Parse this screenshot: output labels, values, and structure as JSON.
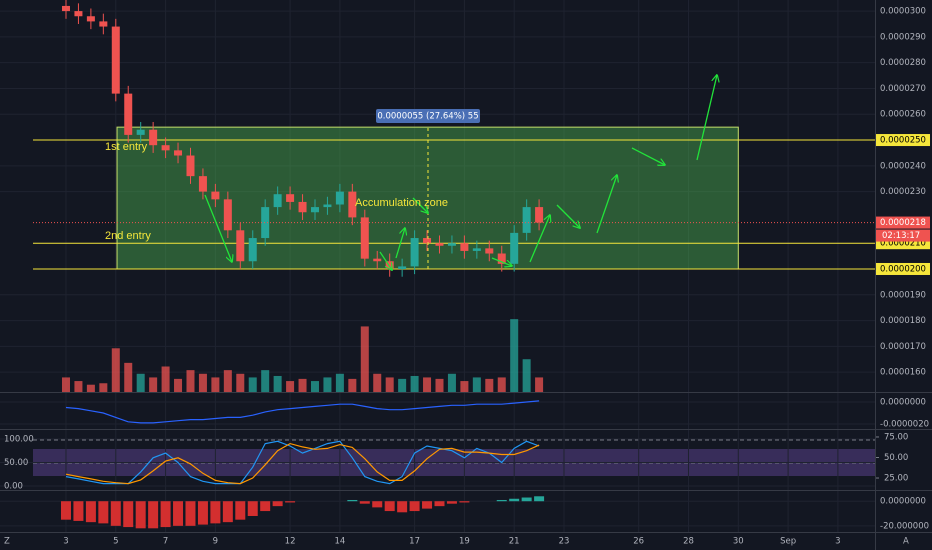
{
  "chart_data": [
    {
      "type": "candlestick",
      "x": [
        3,
        3.5,
        4,
        4.5,
        5,
        5.5,
        6,
        6.5,
        7,
        7.5,
        8,
        8.5,
        9,
        9.5,
        10,
        10.5,
        11,
        11.5,
        12,
        12.5,
        13,
        13.5,
        14,
        14.5,
        15,
        15.5,
        16,
        16.5,
        17,
        17.5,
        18,
        18.5,
        19,
        19.5,
        20,
        20.5,
        21,
        21.5,
        22
      ],
      "open": [
        3.02e-05,
        3e-05,
        2.98e-05,
        2.96e-05,
        2.94e-05,
        2.68e-05,
        2.52e-05,
        2.54e-05,
        2.48e-05,
        2.46e-05,
        2.44e-05,
        2.36e-05,
        2.3e-05,
        2.27e-05,
        2.15e-05,
        2.03e-05,
        2.12e-05,
        2.24e-05,
        2.29e-05,
        2.26e-05,
        2.22e-05,
        2.24e-05,
        2.25e-05,
        2.3e-05,
        2.2e-05,
        2.04e-05,
        2.03e-05,
        2e-05,
        2.01e-05,
        2.12e-05,
        2.1e-05,
        2.09e-05,
        2.1e-05,
        2.07e-05,
        2.08e-05,
        2.06e-05,
        2.02e-05,
        2.14e-05,
        2.24e-05
      ],
      "high": [
        3.05e-05,
        3.03e-05,
        3.01e-05,
        2.99e-05,
        2.97e-05,
        2.71e-05,
        2.57e-05,
        2.57e-05,
        2.51e-05,
        2.49e-05,
        2.47e-05,
        2.39e-05,
        2.33e-05,
        2.3e-05,
        2.18e-05,
        2.15e-05,
        2.27e-05,
        2.32e-05,
        2.32e-05,
        2.29e-05,
        2.27e-05,
        2.28e-05,
        2.33e-05,
        2.33e-05,
        2.23e-05,
        2.07e-05,
        2.06e-05,
        2.04e-05,
        2.15e-05,
        2.15e-05,
        2.13e-05,
        2.13e-05,
        2.13e-05,
        2.11e-05,
        2.11e-05,
        2.09e-05,
        2.17e-05,
        2.27e-05,
        2.27e-05
      ],
      "low": [
        2.97e-05,
        2.95e-05,
        2.93e-05,
        2.91e-05,
        2.65e-05,
        2.49e-05,
        2.49e-05,
        2.45e-05,
        2.43e-05,
        2.41e-05,
        2.33e-05,
        2.27e-05,
        2.24e-05,
        2.12e-05,
        2e-05,
        2e-05,
        2.09e-05,
        2.21e-05,
        2.23e-05,
        2.19e-05,
        2.19e-05,
        2.21e-05,
        2.22e-05,
        2.17e-05,
        2.01e-05,
        2e-05,
        1.97e-05,
        1.97e-05,
        1.98e-05,
        2.07e-05,
        2.06e-05,
        2.06e-05,
        2.04e-05,
        2.04e-05,
        2.03e-05,
        1.99e-05,
        1.99e-05,
        2.11e-05,
        2.15e-05
      ],
      "close": [
        3e-05,
        2.98e-05,
        2.96e-05,
        2.94e-05,
        2.68e-05,
        2.52e-05,
        2.54e-05,
        2.48e-05,
        2.46e-05,
        2.44e-05,
        2.36e-05,
        2.3e-05,
        2.27e-05,
        2.15e-05,
        2.03e-05,
        2.12e-05,
        2.24e-05,
        2.29e-05,
        2.26e-05,
        2.22e-05,
        2.24e-05,
        2.25e-05,
        2.3e-05,
        2.2e-05,
        2.04e-05,
        2.03e-05,
        2e-05,
        2.01e-05,
        2.12e-05,
        2.1e-05,
        2.09e-05,
        2.1e-05,
        2.07e-05,
        2.08e-05,
        2.06e-05,
        2.02e-05,
        2.14e-05,
        2.24e-05,
        2.18e-05
      ],
      "volume": [
        20,
        15,
        10,
        12,
        60,
        40,
        25,
        20,
        35,
        18,
        30,
        25,
        20,
        30,
        25,
        20,
        30,
        22,
        15,
        18,
        15,
        20,
        25,
        18,
        90,
        25,
        20,
        18,
        22,
        20,
        18,
        25,
        15,
        20,
        18,
        20,
        100,
        45,
        20
      ],
      "vlim": [
        0,
        140
      ],
      "up_color": "#26a69a",
      "down_color": "#ef5350",
      "xlim": [
        0.35,
        35.49
      ],
      "xticks": [
        3,
        5,
        7,
        9,
        12,
        14,
        17,
        19,
        21,
        23,
        26,
        28,
        30,
        {
          "value": 32,
          "label": "Sep"
        },
        {
          "value": 34,
          "label": "3"
        }
      ],
      "ylim": [
        1.523e-05,
        3.043e-05
      ],
      "yticks": [
        {
          "value": 1.6e-05,
          "label": "0.0000160"
        },
        {
          "value": 1.7e-05,
          "label": "0.0000170"
        },
        {
          "value": 1.8e-05,
          "label": "0.0000180"
        },
        {
          "value": 1.9e-05,
          "label": "0.0000190"
        },
        {
          "value": 2.3e-05,
          "label": "0.0000230"
        },
        {
          "value": 2.4e-05,
          "label": "0.0000240"
        },
        {
          "value": 2.6e-05,
          "label": "0.0000260"
        },
        {
          "value": 2.7e-05,
          "label": "0.0000270"
        },
        {
          "value": 2.8e-05,
          "label": "0.0000280"
        },
        {
          "value": 2.9e-05,
          "label": "0.0000290"
        },
        {
          "value": 3e-05,
          "label": "0.0000300"
        }
      ],
      "levels": [
        {
          "value": 2.5e-05,
          "label": "0.0000250"
        },
        {
          "value": 2.1e-05,
          "label": "0.0000210"
        },
        {
          "value": 2e-05,
          "label": "0.0000200"
        }
      ],
      "level_color": "#f5e63b",
      "last_price": {
        "value": 2.18e-05,
        "label": "0.0000218",
        "countdown": "02:13:17"
      },
      "zone": {
        "x": [
          5.05,
          30
        ],
        "y": [
          2e-05,
          2.55e-05
        ],
        "label": "0.0000055 (27.64%) 55"
      },
      "annotations": {
        "first": "1st entry",
        "second": "2nd entry",
        "zone": "Accumulation zone"
      }
    },
    {
      "type": "line",
      "series": [
        {
          "color": "#2962ff",
          "values": [
            -5e-07,
            -6e-07,
            -8e-07,
            -1e-06,
            -1.4e-06,
            -1.8e-06,
            -1.9e-06,
            -1.9e-06,
            -1.8e-06,
            -1.7e-06,
            -1.6e-06,
            -1.6e-06,
            -1.5e-06,
            -1.4e-06,
            -1.4e-06,
            -1.2e-06,
            -9e-07,
            -7e-07,
            -6e-07,
            -5e-07,
            -4e-07,
            -3e-07,
            -2e-07,
            -2e-07,
            -4e-07,
            -6e-07,
            -7e-07,
            -7e-07,
            -6e-07,
            -5e-07,
            -4e-07,
            -3e-07,
            -3e-07,
            -2e-07,
            -2e-07,
            -2e-07,
            -1e-07,
            0,
            1e-07
          ]
        }
      ],
      "ylim": [
        -2.45e-06,
        8.2e-07
      ],
      "yticks": [
        {
          "value": 0,
          "label": "0.0000000"
        },
        {
          "value": -2e-06,
          "label": "-0.0000020"
        }
      ]
    },
    {
      "type": "line",
      "series": [
        {
          "color": "#2196f3",
          "values": [
            20,
            15,
            10,
            5,
            5,
            5,
            30,
            60,
            70,
            50,
            20,
            10,
            5,
            5,
            5,
            40,
            90,
            95,
            85,
            70,
            80,
            90,
            95,
            60,
            20,
            10,
            5,
            20,
            70,
            85,
            80,
            75,
            60,
            80,
            70,
            50,
            80,
            95,
            85
          ]
        },
        {
          "color": "#ff9800",
          "values": [
            25,
            20,
            15,
            10,
            7,
            5,
            13,
            32,
            53,
            60,
            47,
            27,
            12,
            7,
            5,
            17,
            45,
            75,
            90,
            83,
            78,
            80,
            88,
            82,
            58,
            30,
            12,
            12,
            32,
            58,
            78,
            80,
            72,
            72,
            70,
            67,
            67,
            75,
            87
          ]
        }
      ],
      "ylim": [
        -8.5,
        119
      ],
      "yticks": [
        {
          "value": 0,
          "label": "0.00"
        },
        {
          "value": 50,
          "label": "50.00"
        },
        {
          "value": 100,
          "label": "100.00"
        }
      ],
      "y2lim": [
        10.4,
        83.5
      ],
      "y2ticks": [
        {
          "value": 25,
          "label": "25.00"
        },
        {
          "value": 50,
          "label": "50.00"
        },
        {
          "value": 75,
          "label": "75.00"
        }
      ]
    },
    {
      "type": "bar",
      "values": [
        -15,
        -16,
        -17,
        -18,
        -20,
        -21,
        -22,
        -22,
        -21,
        -20,
        -20,
        -19,
        -18,
        -17,
        -15,
        -12,
        -8,
        -4,
        -1,
        0,
        0,
        0,
        0,
        1,
        -2,
        -5,
        -8,
        -9,
        -8,
        -6,
        -4,
        -2,
        -1,
        0,
        0,
        1,
        2,
        3,
        4
      ],
      "up_color": "#26a69a",
      "down_color": "#d32f2f",
      "ylim": [
        -25,
        8.3
      ],
      "yticks": [
        {
          "value": 0,
          "label": "0.0000000"
        },
        {
          "value": -20,
          "label": "-20.000000"
        }
      ]
    }
  ],
  "buttons": [
    "Z",
    "A"
  ]
}
